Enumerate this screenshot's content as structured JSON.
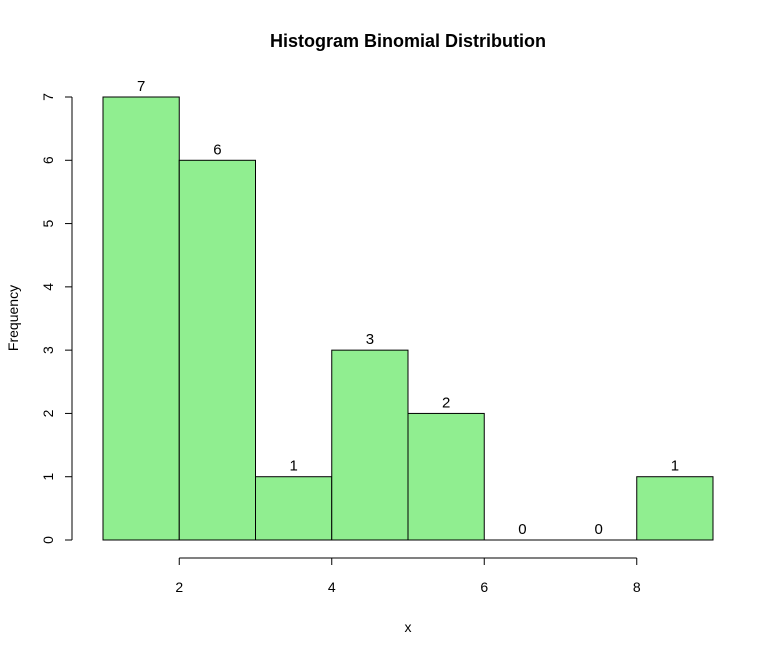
{
  "chart_data": {
    "type": "bar",
    "title": "Histogram Binomial Distribution",
    "xlabel": "x",
    "ylabel": "Frequency",
    "bar_color": "#90EE90",
    "bins": [
      {
        "start": 1,
        "end": 2,
        "count": 7
      },
      {
        "start": 2,
        "end": 3,
        "count": 6
      },
      {
        "start": 3,
        "end": 4,
        "count": 1
      },
      {
        "start": 4,
        "end": 5,
        "count": 3
      },
      {
        "start": 5,
        "end": 6,
        "count": 2
      },
      {
        "start": 6,
        "end": 7,
        "count": 0
      },
      {
        "start": 7,
        "end": 8,
        "count": 0
      },
      {
        "start": 8,
        "end": 9,
        "count": 1
      }
    ],
    "x_ticks": [
      2,
      4,
      6,
      8
    ],
    "y_ticks": [
      0,
      1,
      2,
      3,
      4,
      5,
      6,
      7
    ],
    "xlim": [
      1,
      9
    ],
    "ylim": [
      0,
      7
    ],
    "grid": false
  }
}
